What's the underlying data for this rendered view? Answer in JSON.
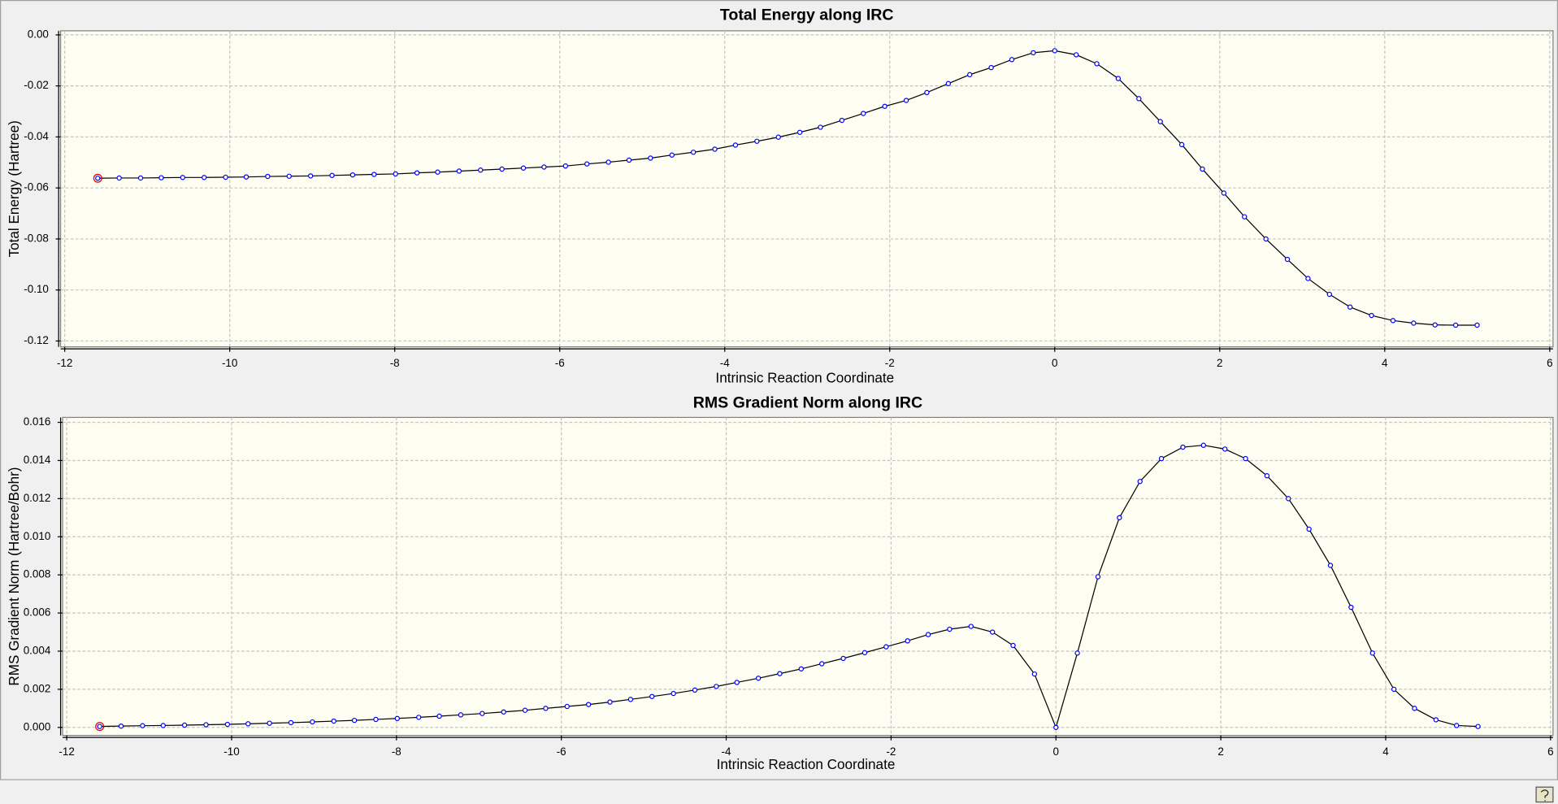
{
  "chart_data": [
    {
      "type": "line",
      "title": "Total Energy along IRC",
      "x_label": "Intrinsic Reaction Coordinate",
      "y_label": "Total Energy (Hartree)",
      "x": [
        -11.6,
        -11.34,
        -11.08,
        -10.83,
        -10.57,
        -10.31,
        -10.05,
        -9.8,
        -9.54,
        -9.28,
        -9.02,
        -8.76,
        -8.51,
        -8.25,
        -7.99,
        -7.73,
        -7.48,
        -7.22,
        -6.96,
        -6.7,
        -6.44,
        -6.19,
        -5.93,
        -5.67,
        -5.41,
        -5.16,
        -4.9,
        -4.64,
        -4.38,
        -4.12,
        -3.87,
        -3.61,
        -3.35,
        -3.09,
        -2.84,
        -2.58,
        -2.32,
        -2.06,
        -1.8,
        -1.55,
        -1.29,
        -1.03,
        -0.77,
        -0.52,
        -0.26,
        0.0,
        0.26,
        0.51,
        0.77,
        1.02,
        1.28,
        1.54,
        1.79,
        2.05,
        2.3,
        2.56,
        2.82,
        3.07,
        3.33,
        3.58,
        3.84,
        4.1,
        4.35,
        4.61,
        4.86,
        5.12
      ],
      "series": [
        {
          "color": "#000000",
          "marker_color": "#0000ff",
          "values": [
            -0.0562,
            -0.0561,
            -0.0561,
            -0.056,
            -0.0559,
            -0.0559,
            -0.0558,
            -0.0557,
            -0.0555,
            -0.0554,
            -0.0553,
            -0.0551,
            -0.0549,
            -0.0547,
            -0.0545,
            -0.0541,
            -0.0538,
            -0.0534,
            -0.053,
            -0.0526,
            -0.0522,
            -0.0518,
            -0.0514,
            -0.0506,
            -0.0499,
            -0.0491,
            -0.0483,
            -0.0471,
            -0.046,
            -0.0448,
            -0.0432,
            -0.0417,
            -0.0401,
            -0.0382,
            -0.0362,
            -0.0335,
            -0.0308,
            -0.028,
            -0.0257,
            -0.0226,
            -0.0191,
            -0.0156,
            -0.0128,
            -0.0097,
            -0.007,
            -0.0062,
            -0.0078,
            -0.0113,
            -0.0171,
            -0.025,
            -0.034,
            -0.043,
            -0.0526,
            -0.062,
            -0.0713,
            -0.08,
            -0.088,
            -0.0955,
            -0.1017,
            -0.1067,
            -0.11,
            -0.112,
            -0.113,
            -0.1137,
            -0.1138,
            -0.1138
          ]
        }
      ],
      "xlim": [
        -12.05,
        6.04
      ],
      "xticks": [
        -12,
        -10,
        -8,
        -6,
        -4,
        -2,
        0,
        2,
        4,
        6
      ],
      "ylim": [
        -0.1223,
        0.0016
      ],
      "yticks": [
        {
          "value": 0,
          "label": "0.00"
        },
        -0.02,
        -0.04,
        -0.06,
        -0.08,
        {
          "value": -0.1,
          "label": "-0.10"
        },
        -0.12
      ],
      "grid": true
    },
    {
      "type": "line",
      "title": "RMS Gradient Norm along IRC",
      "x_label": "Intrinsic Reaction Coordinate",
      "y_label": "RMS Gradient Norm (Hartree/Bohr)",
      "x": [
        -11.6,
        -11.34,
        -11.08,
        -10.83,
        -10.57,
        -10.31,
        -10.05,
        -9.8,
        -9.54,
        -9.28,
        -9.02,
        -8.76,
        -8.51,
        -8.25,
        -7.99,
        -7.73,
        -7.48,
        -7.22,
        -6.96,
        -6.7,
        -6.44,
        -6.19,
        -5.93,
        -5.67,
        -5.41,
        -5.16,
        -4.9,
        -4.64,
        -4.38,
        -4.12,
        -3.87,
        -3.61,
        -3.35,
        -3.09,
        -2.84,
        -2.58,
        -2.32,
        -2.06,
        -1.8,
        -1.55,
        -1.29,
        -1.03,
        -0.77,
        -0.52,
        -0.26,
        0.0,
        0.26,
        0.51,
        0.77,
        1.02,
        1.28,
        1.54,
        1.79,
        2.05,
        2.3,
        2.56,
        2.82,
        3.07,
        3.33,
        3.58,
        3.84,
        4.1,
        4.35,
        4.61,
        4.86,
        5.12
      ],
      "series": [
        {
          "color": "#000000",
          "marker_color": "#0000ff",
          "values": [
            5e-05,
            7e-05,
            9e-05,
            0.0001,
            0.00012,
            0.00014,
            0.00016,
            0.00019,
            0.00022,
            0.00025,
            0.00029,
            0.00033,
            0.00037,
            0.00042,
            0.00047,
            0.00053,
            0.00059,
            0.00066,
            0.00073,
            0.00081,
            0.0009,
            0.001,
            0.0011,
            0.0012,
            0.00133,
            0.00147,
            0.00162,
            0.00178,
            0.00196,
            0.00215,
            0.00236,
            0.00258,
            0.00282,
            0.00307,
            0.00334,
            0.00362,
            0.00392,
            0.00423,
            0.00454,
            0.00487,
            0.00515,
            0.0053,
            0.005,
            0.0043,
            0.0028,
            0,
            0.0039,
            0.0079,
            0.011,
            0.0129,
            0.0141,
            0.0147,
            0.0148,
            0.0146,
            0.0141,
            0.0132,
            0.012,
            0.0104,
            0.0085,
            0.0063,
            0.0039,
            0.002,
            0.001,
            0.0004,
            0.0001,
            5e-05
          ]
        }
      ],
      "xlim": [
        -12.05,
        6.03
      ],
      "xticks": [
        -12,
        -10,
        -8,
        -6,
        -4,
        -2,
        0,
        2,
        4,
        6
      ],
      "ylim": [
        -0.00042,
        0.01626
      ],
      "yticks": [
        {
          "value": 0,
          "label": "0.000"
        },
        0.002,
        0.004,
        0.006,
        0.008,
        {
          "value": 0.01,
          "label": "0.010"
        },
        0.012,
        0.014,
        0.016
      ],
      "grid": true
    }
  ]
}
